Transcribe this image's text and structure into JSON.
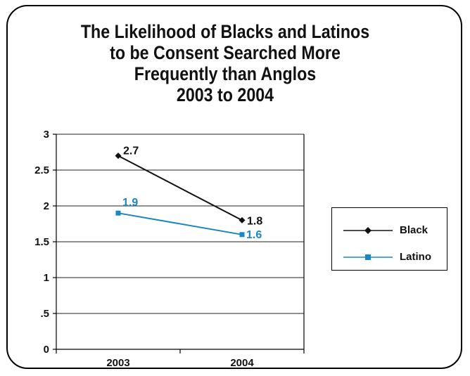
{
  "chart_data": {
    "type": "line",
    "title_lines": [
      "The Likelihood of Blacks and Latinos",
      "to be Consent Searched More",
      "Frequently than Anglos",
      "2003 to 2004"
    ],
    "categories": [
      "2003",
      "2004"
    ],
    "y_tick_labels": [
      "0",
      ".5",
      "1",
      "1.5",
      "2",
      "2.5",
      "3"
    ],
    "ylim": [
      0,
      3
    ],
    "grid": true,
    "legend_position": "right",
    "series": [
      {
        "name": "Black",
        "values": [
          2.7,
          1.8
        ],
        "labels": [
          "2.7",
          "1.8"
        ],
        "color": "#111111",
        "marker": "diamond"
      },
      {
        "name": "Latino",
        "values": [
          1.9,
          1.6
        ],
        "labels": [
          "1.9",
          "1.6"
        ],
        "color": "#1a86c6",
        "marker": "square"
      }
    ]
  }
}
